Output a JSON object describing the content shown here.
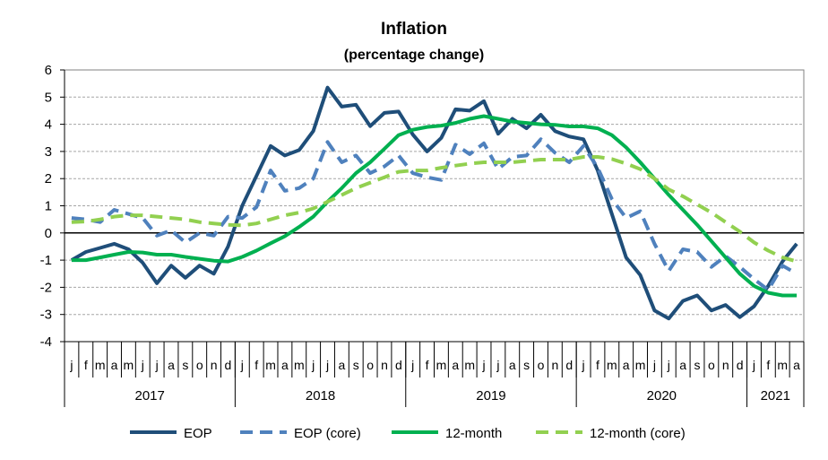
{
  "chart_data": {
    "type": "line",
    "title": "Inflation",
    "subtitle": "(percentage change)",
    "xlabel": "",
    "ylabel": "",
    "ylim": [
      -4,
      6
    ],
    "yticks": [
      -4,
      -3,
      -2,
      -1,
      0,
      1,
      2,
      3,
      4,
      5,
      6
    ],
    "grid": true,
    "legend_position": "bottom",
    "month_labels": [
      "j",
      "f",
      "m",
      "a",
      "m",
      "j",
      "j",
      "a",
      "s",
      "o",
      "n",
      "d",
      "j",
      "f",
      "m",
      "a",
      "m",
      "j",
      "j",
      "a",
      "s",
      "o",
      "n",
      "d",
      "j",
      "f",
      "m",
      "a",
      "m",
      "j",
      "j",
      "a",
      "s",
      "o",
      "n",
      "d",
      "j",
      "f",
      "m",
      "a",
      "m",
      "j",
      "j",
      "a",
      "s",
      "o",
      "n",
      "d",
      "j",
      "f",
      "m",
      "a"
    ],
    "year_groups": [
      {
        "label": "2017",
        "start": 0,
        "count": 12
      },
      {
        "label": "2018",
        "start": 12,
        "count": 12
      },
      {
        "label": "2019",
        "start": 24,
        "count": 12
      },
      {
        "label": "2020",
        "start": 36,
        "count": 12
      },
      {
        "label": "2021",
        "start": 48,
        "count": 4
      }
    ],
    "series": [
      {
        "name": "EOP",
        "color": "#1f4e79",
        "dash": "solid",
        "values": [
          -1.0,
          -0.7,
          -0.55,
          -0.4,
          -0.6,
          -1.1,
          -1.85,
          -1.2,
          -1.65,
          -1.2,
          -1.5,
          -0.5,
          1.0,
          2.1,
          3.2,
          2.85,
          3.05,
          3.75,
          5.35,
          4.65,
          4.72,
          3.93,
          4.42,
          4.47,
          3.62,
          3.0,
          3.5,
          4.55,
          4.5,
          4.85,
          3.65,
          4.2,
          3.85,
          4.35,
          3.75,
          3.55,
          3.45,
          2.3,
          0.7,
          -0.9,
          -1.55,
          -2.85,
          -3.15,
          -2.5,
          -2.3,
          -2.85,
          -2.65,
          -3.1,
          -2.7,
          -1.95,
          -1.05,
          -0.4
        ]
      },
      {
        "name": "EOP (core)",
        "color": "#4f81bd",
        "dash": "dashed",
        "values": [
          0.55,
          0.5,
          0.4,
          0.85,
          0.7,
          0.55,
          -0.1,
          0.1,
          -0.35,
          0.0,
          -0.1,
          0.6,
          0.55,
          0.95,
          2.3,
          1.55,
          1.65,
          2.0,
          3.35,
          2.6,
          2.85,
          2.2,
          2.45,
          2.85,
          2.2,
          2.05,
          1.95,
          3.25,
          2.9,
          3.3,
          2.35,
          2.8,
          2.85,
          3.45,
          2.95,
          2.6,
          3.2,
          2.4,
          1.25,
          0.55,
          0.8,
          -0.4,
          -1.4,
          -0.6,
          -0.7,
          -1.25,
          -0.85,
          -1.25,
          -1.7,
          -2.1,
          -1.2,
          -1.5
        ]
      },
      {
        "name": "12-month",
        "color": "#00b050",
        "dash": "solid",
        "values": [
          -1.0,
          -1.0,
          -0.9,
          -0.8,
          -0.7,
          -0.72,
          -0.8,
          -0.8,
          -0.88,
          -0.95,
          -1.02,
          -1.05,
          -0.88,
          -0.65,
          -0.38,
          -0.12,
          0.22,
          0.6,
          1.15,
          1.65,
          2.2,
          2.6,
          3.1,
          3.6,
          3.8,
          3.9,
          3.95,
          4.05,
          4.2,
          4.3,
          4.2,
          4.1,
          4.05,
          4.0,
          3.98,
          3.92,
          3.92,
          3.85,
          3.6,
          3.15,
          2.6,
          2.0,
          1.4,
          0.85,
          0.3,
          -0.3,
          -0.9,
          -1.5,
          -1.95,
          -2.2,
          -2.3,
          -2.3
        ]
      },
      {
        "name": "12-month (core)",
        "color": "#92d050",
        "dash": "dashed",
        "values": [
          0.4,
          0.42,
          0.5,
          0.6,
          0.65,
          0.65,
          0.6,
          0.55,
          0.5,
          0.4,
          0.35,
          0.3,
          0.28,
          0.35,
          0.5,
          0.65,
          0.75,
          0.9,
          1.15,
          1.4,
          1.65,
          1.85,
          2.05,
          2.25,
          2.3,
          2.3,
          2.4,
          2.48,
          2.55,
          2.6,
          2.6,
          2.6,
          2.65,
          2.7,
          2.7,
          2.7,
          2.8,
          2.8,
          2.72,
          2.55,
          2.35,
          2.0,
          1.6,
          1.35,
          1.05,
          0.75,
          0.4,
          0.05,
          -0.35,
          -0.65,
          -0.9,
          -1.05
        ]
      }
    ]
  }
}
